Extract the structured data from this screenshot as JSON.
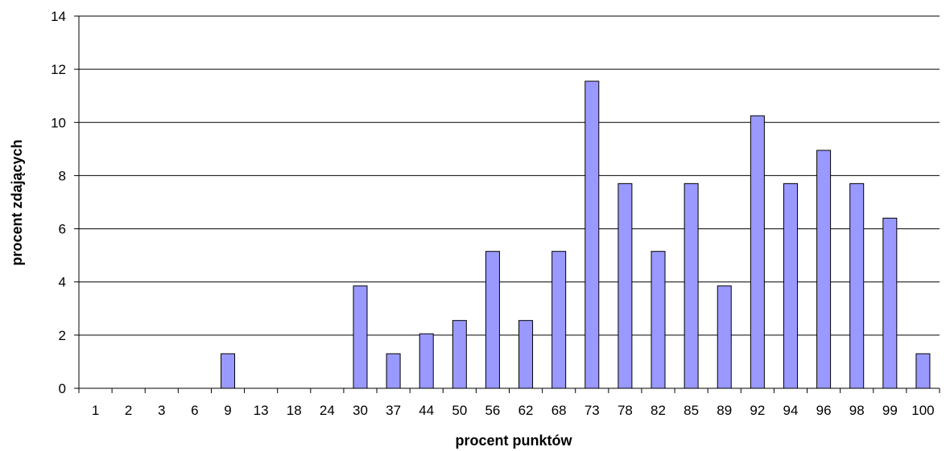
{
  "chart_data": {
    "type": "bar",
    "title": "",
    "xlabel": "procent punktów",
    "ylabel": "procent zdających",
    "ylim": [
      0,
      14
    ],
    "yticks": [
      0,
      2,
      4,
      6,
      8,
      10,
      12,
      14
    ],
    "grid": true,
    "legend": "none",
    "bar_color": "#9999ff",
    "categories": [
      "1",
      "2",
      "3",
      "6",
      "9",
      "13",
      "18",
      "24",
      "30",
      "37",
      "44",
      "50",
      "56",
      "62",
      "68",
      "73",
      "78",
      "82",
      "85",
      "89",
      "92",
      "94",
      "96",
      "98",
      "99",
      "100"
    ],
    "values": [
      0,
      0,
      0,
      0,
      1.3,
      0,
      0,
      0,
      3.85,
      1.3,
      2.05,
      2.55,
      5.15,
      2.55,
      5.15,
      11.55,
      7.7,
      5.15,
      7.7,
      3.85,
      10.25,
      7.7,
      8.95,
      7.7,
      6.4,
      1.3
    ]
  }
}
